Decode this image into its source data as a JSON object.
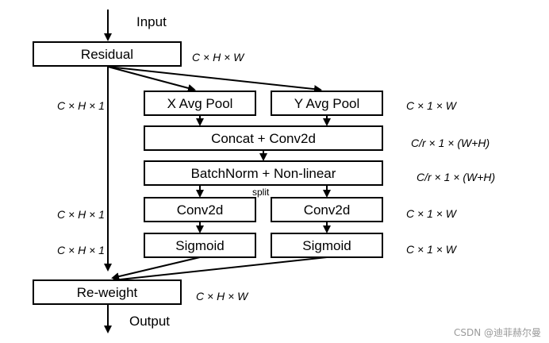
{
  "diagram": {
    "input_label": "Input",
    "output_label": "Output",
    "residual": "Residual",
    "x_avg_pool": "X Avg Pool",
    "y_avg_pool": "Y Avg Pool",
    "concat_conv": "Concat + Conv2d",
    "batchnorm": "BatchNorm + Non-linear",
    "split": "split",
    "conv2d_left": "Conv2d",
    "conv2d_right": "Conv2d",
    "sigmoid_left": "Sigmoid",
    "sigmoid_right": "Sigmoid",
    "reweight": "Re-weight",
    "dims": {
      "residual_out": "C × H × W",
      "x_pool_out": "C × H × 1",
      "y_pool_out": "C × 1 × W",
      "concat_out": "C/r × 1 × (W+H)",
      "bn_out": "C/r × 1 × (W+H)",
      "conv_left_out": "C × H × 1",
      "conv_right_out": "C × 1 × W",
      "sig_left_out": "C × H × 1",
      "sig_right_out": "C × 1 × W",
      "reweight_out": "C × H × W"
    }
  },
  "watermark": "CSDN @迪菲赫尔曼"
}
